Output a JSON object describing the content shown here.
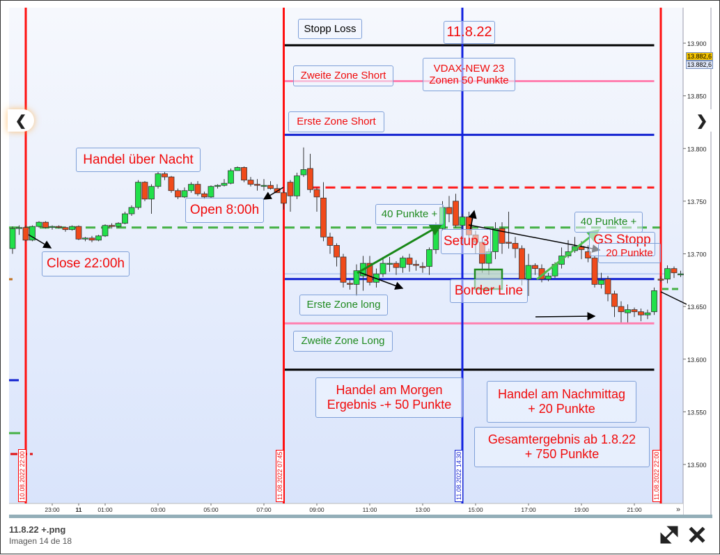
{
  "viewer": {
    "file_name": "11.8.22 +.png",
    "counter": "Imagen 14 de 18",
    "prev_icon": "chevron-left-icon",
    "next_icon": "chevron-right-icon",
    "expand_icon": "expand-icon",
    "close_icon": "close-icon"
  },
  "chart_data": {
    "type": "candlestick",
    "interval_min": 15,
    "start": "10.08.2022 21:30",
    "ylim": [
      13480,
      13935
    ],
    "y_ticks": [
      "13.900",
      "13.850",
      "13.800",
      "13.750",
      "13.700",
      "13.650",
      "13.600",
      "13.550",
      "13.500"
    ],
    "y_tick_values": [
      13900,
      13850,
      13800,
      13750,
      13700,
      13650,
      13600,
      13550,
      13500
    ],
    "x_ticks": [
      {
        "label": "23:00",
        "time": "10.08.2022 23:00"
      },
      {
        "label": "11",
        "time": "11.08.2022 00:00",
        "bold": true
      },
      {
        "label": "01:00",
        "time": "11.08.2022 01:00"
      },
      {
        "label": "03:00",
        "time": "11.08.2022 03:00"
      },
      {
        "label": "05:00",
        "time": "11.08.2022 05:00"
      },
      {
        "label": "07:00",
        "time": "11.08.2022 07:00"
      },
      {
        "label": "09:00",
        "time": "11.08.2022 09:00"
      },
      {
        "label": "11:00",
        "time": "11.08.2022 11:00"
      },
      {
        "label": "13:00",
        "time": "11.08.2022 13:00"
      },
      {
        "label": "15:00",
        "time": "11.08.2022 15:00"
      },
      {
        "label": "17:00",
        "time": "11.08.2022 17:00"
      },
      {
        "label": "19:00",
        "time": "11.08.2022 19:00"
      },
      {
        "label": "21:00",
        "time": "11.08.2022 21:00"
      }
    ],
    "scroll_more": "»",
    "last_price_labels": [
      "13.882,6",
      "13.882,6"
    ],
    "last_price_colors": [
      "#f5c400",
      "#dfe6f7"
    ],
    "up_color": "#22e04a",
    "down_color": "#f04a1a",
    "candles": [
      [
        13705,
        13726,
        13700,
        13724
      ],
      [
        13724,
        13727,
        13718,
        13725
      ],
      [
        13725,
        13727,
        13712,
        13713
      ],
      [
        13713,
        13727,
        13712,
        13726
      ],
      [
        13726,
        13731,
        13725,
        13730
      ],
      [
        13730,
        13731,
        13724,
        13725
      ],
      [
        13725,
        13727,
        13723,
        13726
      ],
      [
        13726,
        13727,
        13724,
        13725
      ],
      [
        13725,
        13726,
        13721,
        13723
      ],
      [
        13723,
        13727,
        13722,
        13726
      ],
      [
        13726,
        13727,
        13713,
        13714
      ],
      [
        13714,
        13716,
        13712,
        13715
      ],
      [
        13715,
        13717,
        13711,
        13713
      ],
      [
        13713,
        13718,
        13712,
        13717
      ],
      [
        13717,
        13728,
        13716,
        13727
      ],
      [
        13727,
        13729,
        13724,
        13726
      ],
      [
        13726,
        13730,
        13725,
        13729
      ],
      [
        13729,
        13740,
        13728,
        13738
      ],
      [
        13738,
        13746,
        13736,
        13744
      ],
      [
        13744,
        13770,
        13742,
        13768
      ],
      [
        13768,
        13769,
        13750,
        13752
      ],
      [
        13752,
        13766,
        13738,
        13764
      ],
      [
        13764,
        13778,
        13762,
        13776
      ],
      [
        13776,
        13778,
        13770,
        13773
      ],
      [
        13773,
        13774,
        13758,
        13760
      ],
      [
        13760,
        13762,
        13752,
        13754
      ],
      [
        13754,
        13763,
        13753,
        13760
      ],
      [
        13760,
        13768,
        13758,
        13766
      ],
      [
        13766,
        13769,
        13755,
        13757
      ],
      [
        13757,
        13759,
        13752,
        13754
      ],
      [
        13754,
        13765,
        13753,
        13764
      ],
      [
        13764,
        13766,
        13762,
        13765
      ],
      [
        13765,
        13771,
        13764,
        13767
      ],
      [
        13767,
        13781,
        13766,
        13779
      ],
      [
        13779,
        13783,
        13779,
        13782
      ],
      [
        13782,
        13783,
        13768,
        13770
      ],
      [
        13770,
        13773,
        13764,
        13766
      ],
      [
        13766,
        13771,
        13760,
        13765
      ],
      [
        13765,
        13771,
        13760,
        13765
      ],
      [
        13765,
        13769,
        13761,
        13762
      ],
      [
        13762,
        13766,
        13758,
        13758
      ],
      [
        13758,
        13760,
        13742,
        13748
      ],
      [
        13768,
        13770,
        13740,
        13755
      ],
      [
        13755,
        13777,
        13752,
        13774
      ],
      [
        13775,
        13801,
        13773,
        13780
      ],
      [
        13781,
        13795,
        13758,
        13761
      ],
      [
        13761,
        13763,
        13740,
        13754
      ],
      [
        13753,
        13768,
        13712,
        13716
      ],
      [
        13716,
        13720,
        13700,
        13708
      ],
      [
        13708,
        13710,
        13688,
        13697
      ],
      [
        13697,
        13700,
        13668,
        13673
      ],
      [
        13672,
        13675,
        13666,
        13671
      ],
      [
        13671,
        13690,
        13660,
        13684
      ],
      [
        13679,
        13698,
        13665,
        13691
      ],
      [
        13691,
        13698,
        13670,
        13673
      ],
      [
        13673,
        13686,
        13668,
        13681
      ],
      [
        13681,
        13697,
        13678,
        13691
      ],
      [
        13690,
        13697,
        13683,
        13691
      ],
      [
        13691,
        13693,
        13680,
        13687
      ],
      [
        13687,
        13698,
        13682,
        13696
      ],
      [
        13696,
        13700,
        13683,
        13690
      ],
      [
        13690,
        13694,
        13684,
        13689
      ],
      [
        13688,
        13692,
        13682,
        13687
      ],
      [
        13688,
        13706,
        13680,
        13704
      ],
      [
        13704,
        13730,
        13700,
        13727
      ],
      [
        13724,
        13750,
        13722,
        13744
      ],
      [
        13744,
        13755,
        13730,
        13738
      ],
      [
        13750,
        13757,
        13725,
        13727
      ],
      [
        13727,
        13738,
        13712,
        13735
      ],
      [
        13735,
        13740,
        13710,
        13718
      ],
      [
        13718,
        13722,
        13700,
        13711
      ],
      [
        13711,
        13715,
        13682,
        13691
      ],
      [
        13691,
        13705,
        13680,
        13702
      ],
      [
        13702,
        13730,
        13695,
        13724
      ],
      [
        13724,
        13730,
        13700,
        13710
      ],
      [
        13711,
        13740,
        13705,
        13710
      ],
      [
        13710,
        13716,
        13696,
        13705
      ],
      [
        13705,
        13708,
        13670,
        13676
      ],
      [
        13676,
        13700,
        13660,
        13689
      ],
      [
        13689,
        13691,
        13680,
        13686
      ],
      [
        13686,
        13690,
        13673,
        13676
      ],
      [
        13676,
        13682,
        13674,
        13679
      ],
      [
        13679,
        13692,
        13677,
        13690
      ],
      [
        13690,
        13706,
        13686,
        13698
      ],
      [
        13698,
        13713,
        13696,
        13702
      ],
      [
        13703,
        13716,
        13701,
        13707
      ],
      [
        13707,
        13712,
        13695,
        13704
      ],
      [
        13702,
        13708,
        13692,
        13696
      ],
      [
        13696,
        13698,
        13668,
        13671
      ],
      [
        13671,
        13682,
        13667,
        13675
      ],
      [
        13676,
        13679,
        13655,
        13662
      ],
      [
        13662,
        13665,
        13640,
        13650
      ],
      [
        13650,
        13655,
        13635,
        13645
      ],
      [
        13644,
        13652,
        13635,
        13647
      ],
      [
        13647,
        13649,
        13640,
        13645
      ],
      [
        13645,
        13648,
        13636,
        13642
      ],
      [
        13642,
        13647,
        13638,
        13644
      ],
      [
        13645,
        13668,
        13642,
        13665
      ],
      [
        13676,
        13679,
        13673,
        13675
      ],
      [
        13676,
        13689,
        13672,
        13686
      ],
      [
        13686,
        13688,
        13677,
        13682
      ],
      [
        13681,
        13684,
        13678,
        13681
      ]
    ],
    "vertical_lines": [
      {
        "time": "10.08.2022 22:00",
        "label": "10.08.2022 22:00",
        "color": "#ff1010"
      },
      {
        "time": "11.08.2022 07:45",
        "label": "11.08.2022 07:45",
        "color": "#ff1010"
      },
      {
        "time": "11.08.2022 14:30",
        "label": "11.08.2022 14:30",
        "color": "#1020e0"
      },
      {
        "time": "11.08.2022 22:00",
        "label": "11.08.2022 22:00",
        "color": "#ff1010"
      }
    ],
    "levels": [
      {
        "price": 13898,
        "color": "#000000",
        "from": "11.08.2022 07:45",
        "to": "11.08.2022 21:45",
        "dashed": false
      },
      {
        "price": 13864,
        "color": "#ff80b0",
        "from": "11.08.2022 07:45",
        "to": "11.08.2022 21:45",
        "dashed": false
      },
      {
        "price": 13813,
        "color": "#1020d0",
        "from": "11.08.2022 07:45",
        "to": "11.08.2022 21:45",
        "dashed": false
      },
      {
        "price": 13763,
        "color": "#ff1a1a",
        "from": "11.08.2022 08:45",
        "to": "11.08.2022 21:45",
        "dashed": true
      },
      {
        "price": 13725,
        "color": "#44b044",
        "from": "10.08.2022 21:15",
        "to": "11.08.2022 22:00",
        "dashed": true
      },
      {
        "price": 13681,
        "color": "#8fb0ee",
        "from": "11.08.2022 07:45",
        "to": "11.08.2022 22:15",
        "dashed": false
      },
      {
        "price": 13676,
        "color": "#1020d0",
        "from": "11.08.2022 07:45",
        "to": "11.08.2022 21:45",
        "dashed": false
      },
      {
        "price": 13634,
        "color": "#ff80b0",
        "from": "11.08.2022 07:45",
        "to": "11.08.2022 21:45",
        "dashed": false
      },
      {
        "price": 13590,
        "color": "#000000",
        "from": "11.08.2022 07:45",
        "to": "11.08.2022 21:45",
        "dashed": false
      }
    ],
    "annotations": {
      "stopp_loss": "Stopp Loss",
      "date": "11.8.22",
      "vdax": [
        "VDAX-NEW 23",
        "Zonen 50 Punkte"
      ],
      "zweite_zone_short": "Zweite Zone Short",
      "erste_zone_short": "Erste Zone Short",
      "handel_nacht": "Handel über Nacht",
      "open": "Open 8:00h",
      "punkte_40_a": "40 Punkte +",
      "setup": "Setup 3",
      "punkte_40_b": "40 Punkte +",
      "gs_stopp": "GS Stopp",
      "punkte_20": "20 Punkte",
      "close": "Close 22:00h",
      "border_line": "Border Line",
      "erste_zone_long": "Erste Zone long",
      "zweite_zone_long": "Zweite Zone Long",
      "morgen": [
        "Handel am Morgen",
        "Ergebnis  -+ 50 Punkte"
      ],
      "nachmittag": [
        "Handel am Nachmittag",
        "+ 20 Punkte"
      ],
      "gesamt": [
        "Gesamtergebnis  ab 1.8.22",
        "+ 750  Punkte"
      ]
    }
  }
}
